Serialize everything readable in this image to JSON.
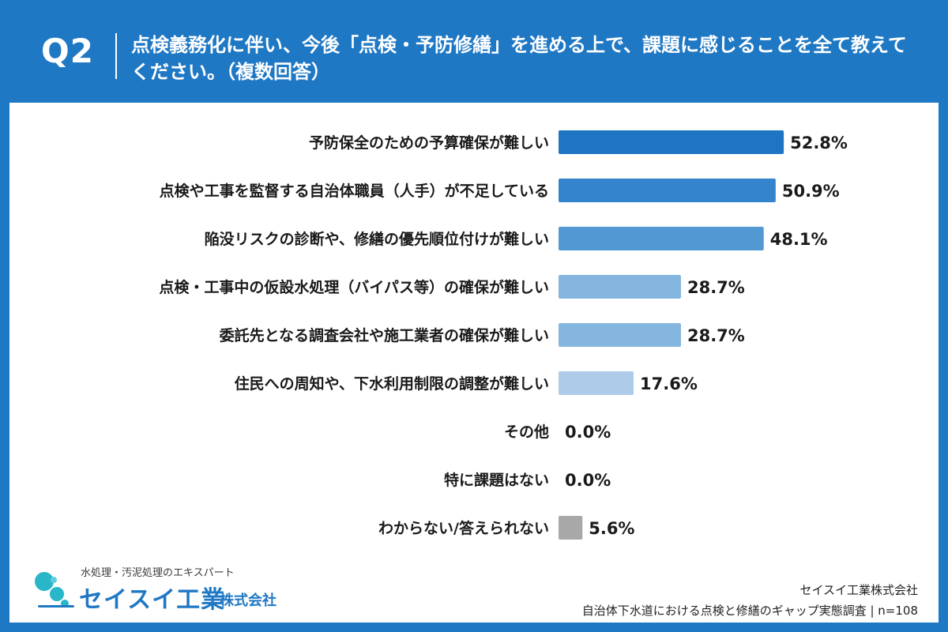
{
  "header": {
    "q_label": "Q2",
    "title": "点検義務化に伴い、今後「点検・予防修繕」を進める上で、課題に感じることを全て教えてください。（複数回答）"
  },
  "colors": {
    "header_bg": "#1f78c4",
    "bar_shades": [
      "#1f74c4",
      "#3384cc",
      "#5299d3",
      "#84b6e0",
      "#84b6e0",
      "#aeccea",
      "#aeccea",
      "#aeccea",
      "#a8a8a8"
    ]
  },
  "chart_data": {
    "type": "bar",
    "orientation": "horizontal",
    "categories": [
      "予防保全のための予算確保が難しい",
      "点検や工事を監督する自治体職員（人手）が不足している",
      "陥没リスクの診断や、修繕の優先順位付けが難しい",
      "点検・工事中の仮設水処理（バイパス等）の確保が難しい",
      "委託先となる調査会社や施工業者の確保が難しい",
      "住民への周知や、下水利用制限の調整が難しい",
      "その他",
      "特に課題はない",
      "わからない/答えられない"
    ],
    "values": [
      52.8,
      50.9,
      48.1,
      28.7,
      28.7,
      17.6,
      0.0,
      0.0,
      5.6
    ],
    "value_labels": [
      "52.8%",
      "50.9%",
      "48.1%",
      "28.7%",
      "28.7%",
      "17.6%",
      "0.0%",
      "0.0%",
      "5.6%"
    ],
    "unit": "%",
    "xlim": [
      0,
      100
    ],
    "grid": false,
    "legend": "none"
  },
  "brand": {
    "tagline": "水処理・汚泥処理のエキスパート",
    "name": "セイスイ工業",
    "suffix": "株式会社",
    "icon": "water-drops-logo-icon"
  },
  "credit": {
    "company": "セイスイ工業株式会社",
    "survey": "自治体下水道における点検と修繕のギャップ実態調査 | n=108"
  }
}
